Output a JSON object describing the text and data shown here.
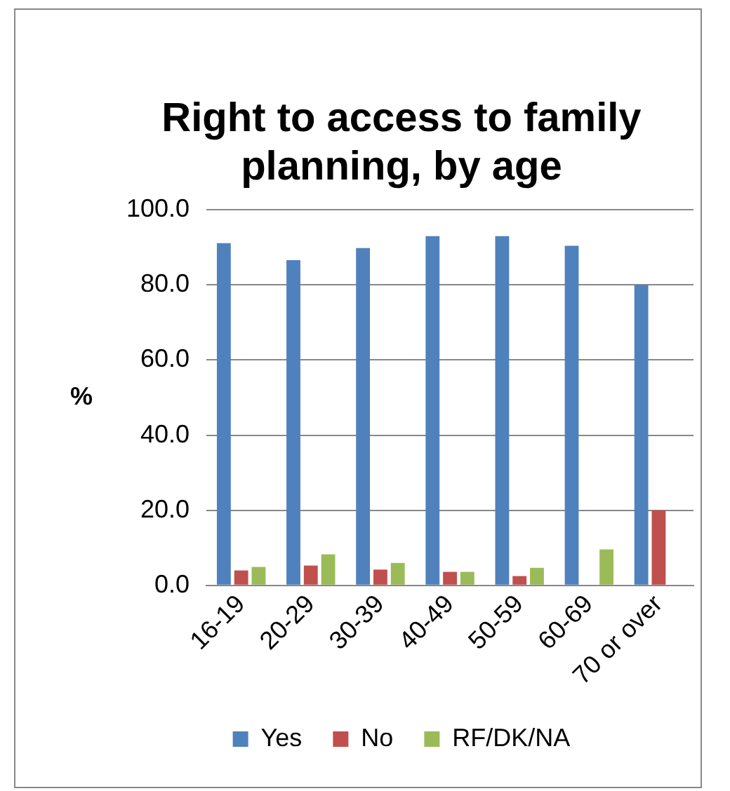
{
  "chart_data": {
    "type": "bar",
    "title": "Right to access to family planning, by age",
    "ylabel": "%",
    "categories": [
      "16-19",
      "20-29",
      "30-39",
      "40-49",
      "50-59",
      "60-69",
      "70 or over"
    ],
    "series": [
      {
        "name": "Yes",
        "color": "#4f81bd",
        "values": [
          91.1,
          86.6,
          89.8,
          93.0,
          93.0,
          90.4,
          80.0
        ]
      },
      {
        "name": "No",
        "color": "#c0504d",
        "values": [
          4.0,
          5.3,
          4.2,
          3.6,
          2.5,
          null,
          20.0
        ]
      },
      {
        "name": "RF/DK/NA",
        "color": "#9bbb59",
        "values": [
          4.9,
          8.3,
          6.0,
          3.6,
          4.7,
          9.6,
          null
        ]
      }
    ],
    "ylim": [
      0,
      100
    ],
    "yticks": [
      {
        "value": 0,
        "label": "0.0"
      },
      {
        "value": 20,
        "label": "20.0"
      },
      {
        "value": 40,
        "label": "40.0"
      },
      {
        "value": 60,
        "label": "60.0"
      },
      {
        "value": 80,
        "label": "80.0"
      },
      {
        "value": 100,
        "label": "100.0"
      }
    ],
    "grid": "y",
    "legend": "bottom"
  }
}
